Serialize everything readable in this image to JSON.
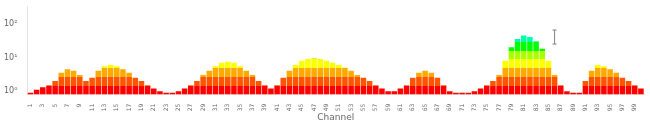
{
  "chart_data": {
    "type": "bar",
    "xlabel": "Channel",
    "categories": [
      "1",
      null,
      "3",
      null,
      "5",
      null,
      "7",
      null,
      "9",
      null,
      "11",
      null,
      "13",
      null,
      "15",
      null,
      "17",
      null,
      "19",
      null,
      "21",
      null,
      "23",
      null,
      "25",
      null,
      "27",
      null,
      "29",
      null,
      "31",
      null,
      "33",
      null,
      "35",
      null,
      "37",
      null,
      "39",
      null,
      "41",
      null,
      "43",
      null,
      "45",
      null,
      "47",
      null,
      "49",
      null,
      "51",
      null,
      "53",
      null,
      "55",
      null,
      "57",
      null,
      "59",
      null,
      "61",
      null,
      "63",
      null,
      "65",
      null,
      "67",
      null,
      "69",
      null,
      "71",
      null,
      "73",
      null,
      "75",
      null,
      "77",
      null,
      "79",
      null,
      "81",
      null,
      "83",
      null,
      "85",
      null,
      "87",
      null,
      "89",
      null,
      "91",
      null,
      "93",
      null,
      "95",
      null,
      "97",
      null,
      "99",
      null
    ],
    "values": [
      0.9,
      1.1,
      1.3,
      1.5,
      2.0,
      3.5,
      4.5,
      4.0,
      3.0,
      2.0,
      2.5,
      4.0,
      5.5,
      6.0,
      5.5,
      4.5,
      3.5,
      2.5,
      2.0,
      1.5,
      1.2,
      1.0,
      0.9,
      0.9,
      1.0,
      1.2,
      1.5,
      2.0,
      3.0,
      4.0,
      5.5,
      7.0,
      7.5,
      7.0,
      5.5,
      4.0,
      3.0,
      2.0,
      1.5,
      1.2,
      1.5,
      2.5,
      4.0,
      6.0,
      8.0,
      9.0,
      9.5,
      9.0,
      8.0,
      7.0,
      6.0,
      5.0,
      4.0,
      3.0,
      2.5,
      2.0,
      1.5,
      1.2,
      1.0,
      1.0,
      1.2,
      1.5,
      2.5,
      3.5,
      4.0,
      3.5,
      2.5,
      1.5,
      1.0,
      0.9,
      0.9,
      0.9,
      1.0,
      1.2,
      1.5,
      2.0,
      3.0,
      8.0,
      20.0,
      35.0,
      45.0,
      40.0,
      30.0,
      18.0,
      8.0,
      3.0,
      1.5,
      1.0,
      0.9,
      0.9,
      2.0,
      4.0,
      6.0,
      5.5,
      4.5,
      3.5,
      2.5,
      2.0,
      1.5,
      1.2
    ],
    "band_colors": [
      "#ff0000",
      "#ff5500",
      "#ffaa00",
      "#ffff00",
      "#aaff00",
      "#00ff00",
      "#00ffaa",
      "#00ffff",
      "#00aaff",
      "#0055ff"
    ],
    "error_bar": {
      "position": 85,
      "y": 45,
      "yerr": 20,
      "color": "#808080"
    },
    "log": "y",
    "ylim": [
      0.7943282347242815,
      316.22776601683796
    ],
    "yticks": [
      {
        "value": 1,
        "label": "10⁰"
      },
      {
        "value": 10,
        "label": "10¹"
      },
      {
        "value": 100,
        "label": "10²"
      }
    ],
    "grid": false
  }
}
